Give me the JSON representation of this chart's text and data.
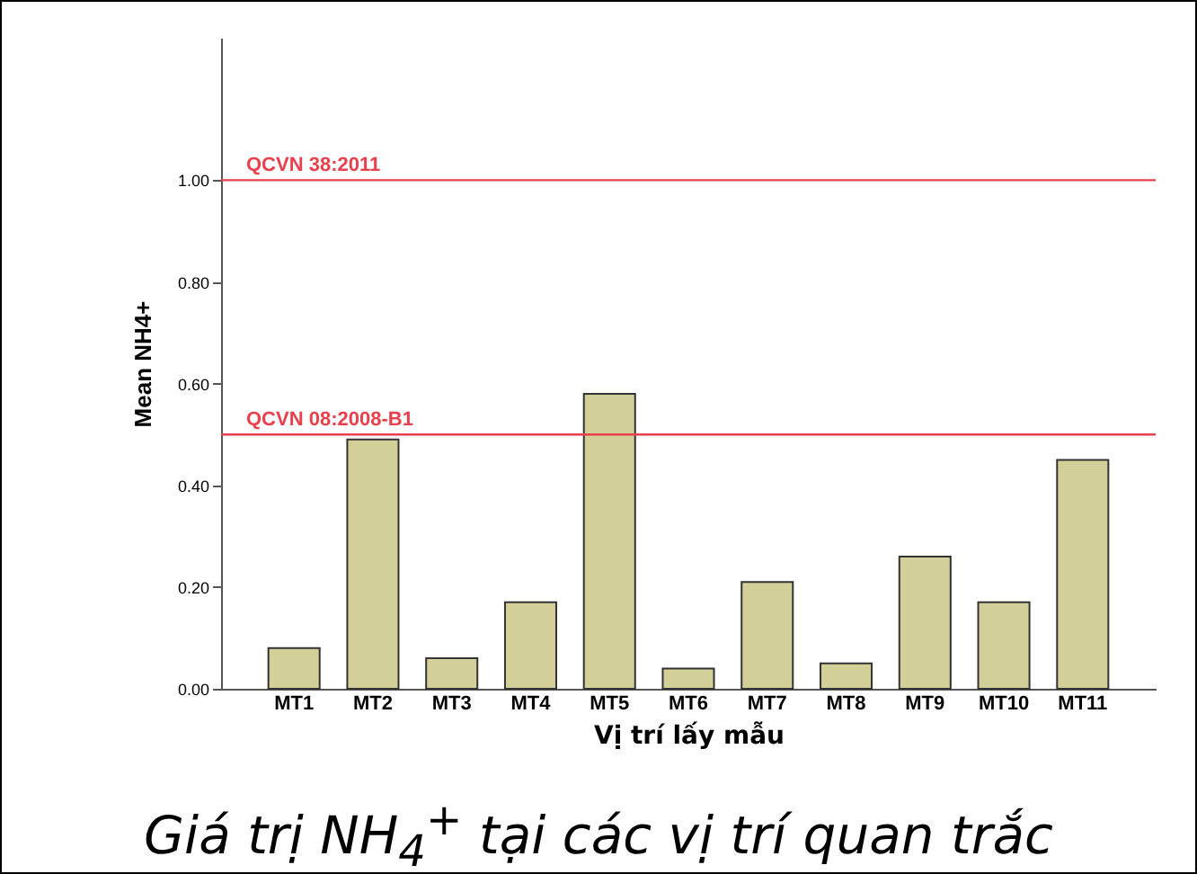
{
  "chart_data": {
    "type": "bar",
    "title": "Giá trị NH$_{4}$$^{+}$ tại các vị trí quan trắc",
    "xlabel": "Vị trí lấy mẫu",
    "ylabel": "Mean NH4+",
    "categories": [
      "MT1",
      "MT2",
      "MT3",
      "MT4",
      "MT5",
      "MT6",
      "MT7",
      "MT8",
      "MT9",
      "MT10",
      "MT11"
    ],
    "values": [
      0.08,
      0.49,
      0.06,
      0.17,
      0.58,
      0.04,
      0.21,
      0.05,
      0.26,
      0.17,
      0.45
    ],
    "color": "#d3cf98",
    "ylim": [
      0,
      1.28
    ],
    "yticks": [
      {
        "value": 0,
        "label": "0.00"
      },
      {
        "value": 0.2,
        "label": "0.20"
      },
      {
        "value": 0.4,
        "label": "0.40"
      },
      {
        "value": 0.6,
        "label": "0.60"
      },
      {
        "value": 0.8,
        "label": "0.80"
      },
      {
        "value": 1,
        "label": "1.00"
      }
    ],
    "ref_lines": [
      {
        "axis": "y",
        "value": 1,
        "color": "#e8404c"
      },
      {
        "axis": "y",
        "value": 0.5,
        "color": "#e8404c"
      }
    ],
    "annotations": [
      {
        "text": "QCVN 38:2011",
        "y": 1
      },
      {
        "text": "QCVN 08:2008-B1",
        "y": 0.5
      }
    ],
    "grid": false
  }
}
